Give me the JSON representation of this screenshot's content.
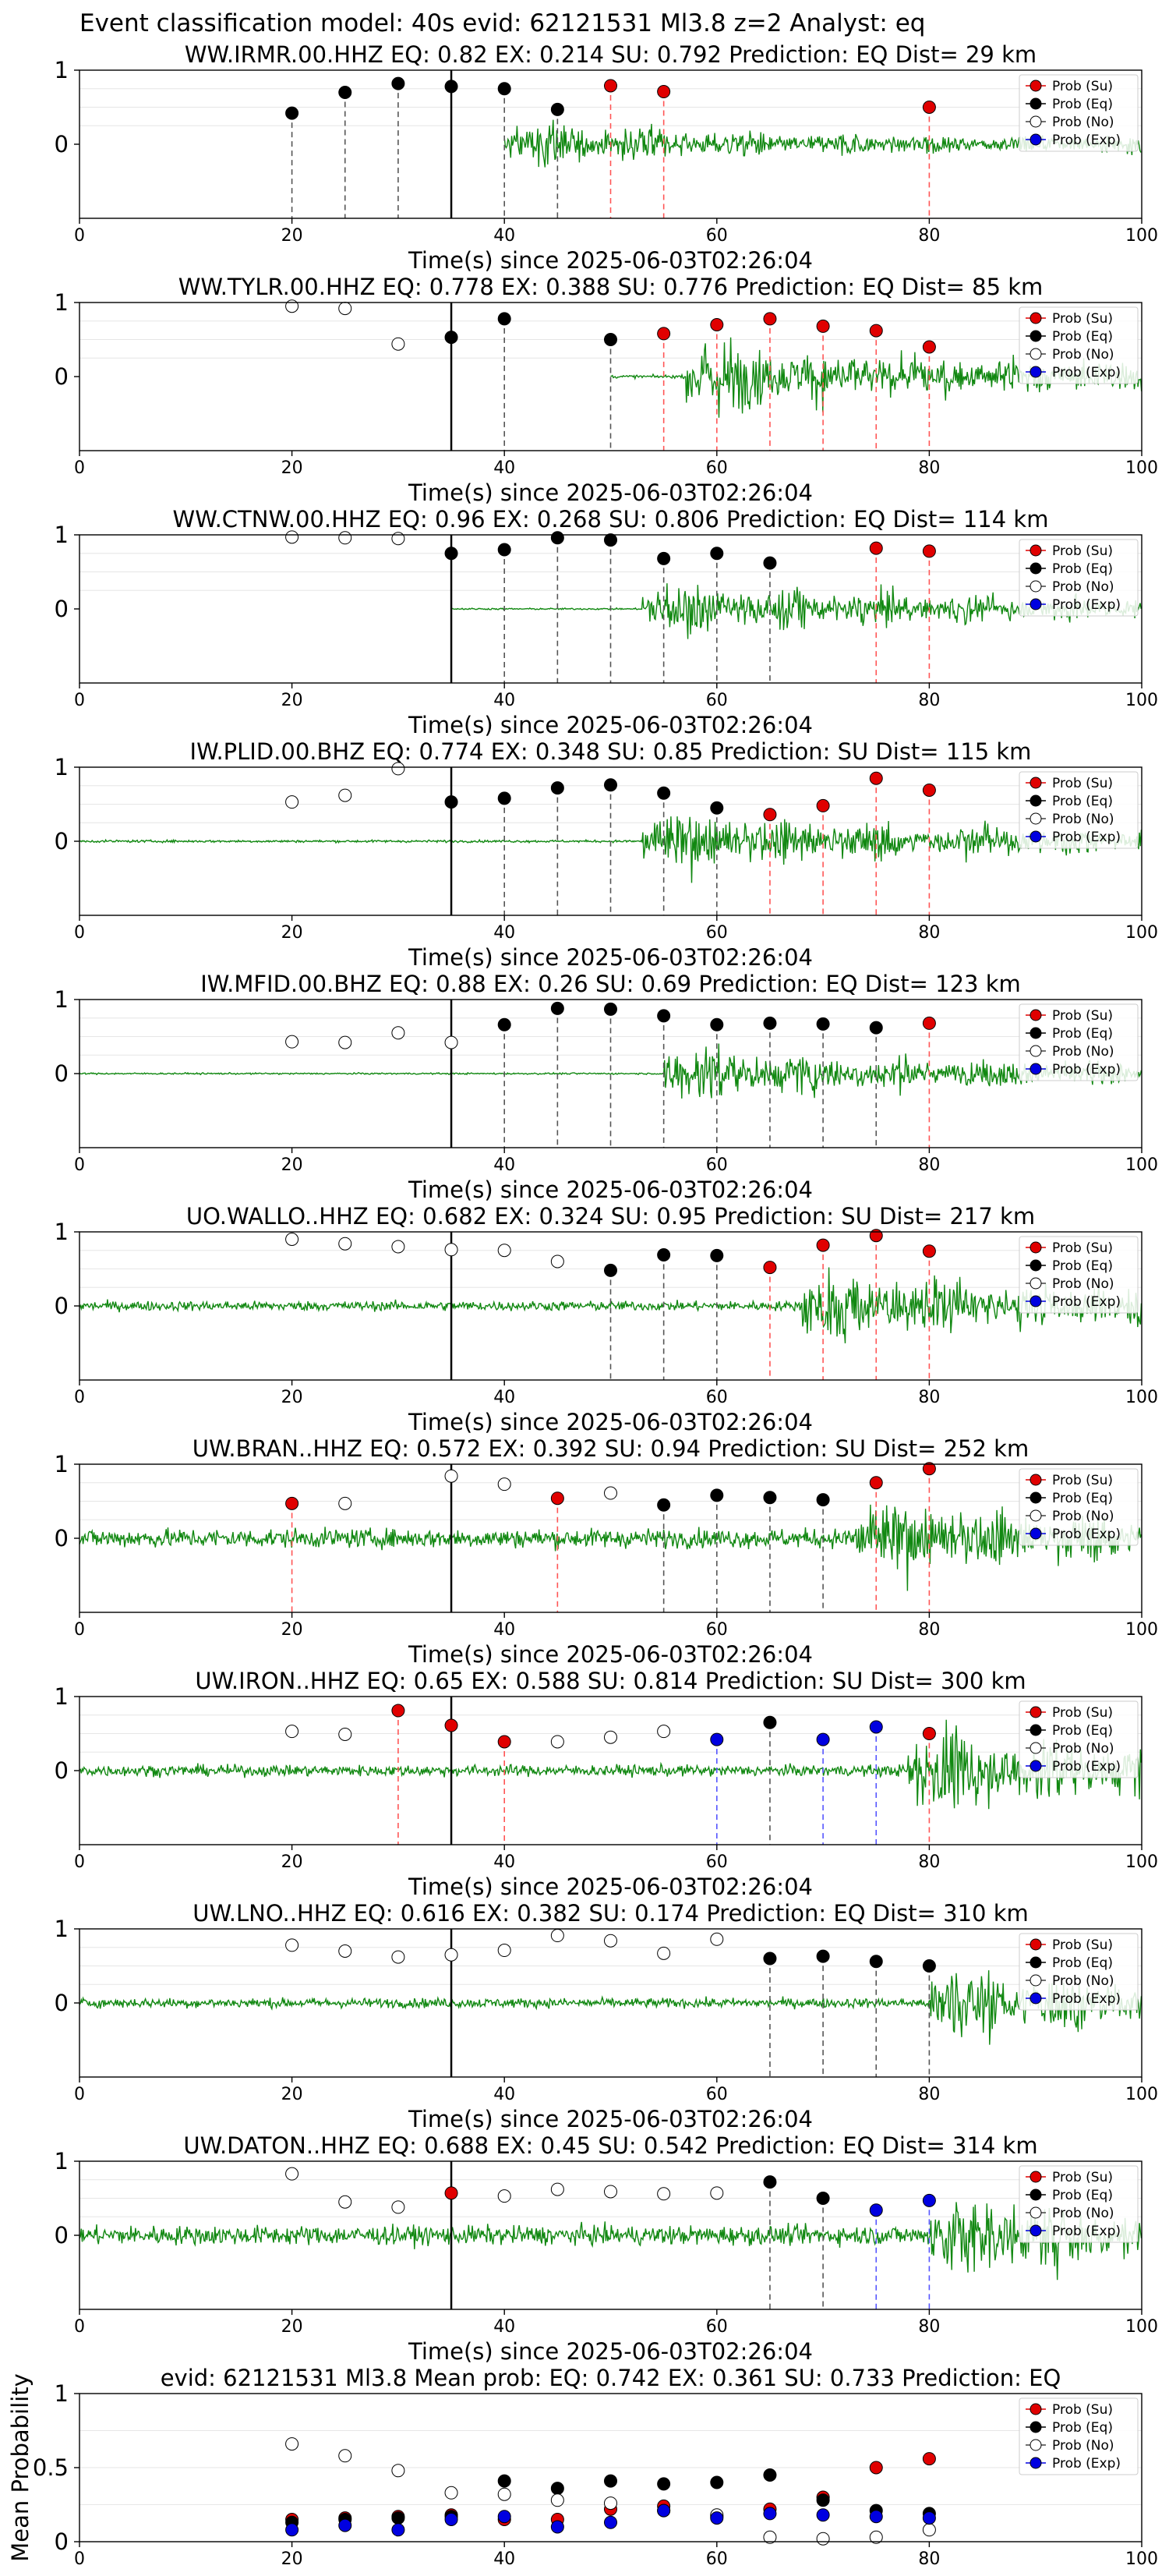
{
  "figure_title": "Event classification model: 40s evid: 62121531 Ml3.8 z=2 Analyst: eq",
  "x_axis_label": "Time(s) since 2025-06-03T02:26:04",
  "legend": [
    "Prob (Su)",
    "Prob (Eq)",
    "Prob (No)",
    "Prob (Exp)"
  ],
  "colors": {
    "su": "#e00000",
    "eq": "#000000",
    "no": "#ffffff",
    "exp": "#0000e0",
    "waveform": "#118811",
    "su_line": "#ff5555",
    "eq_line": "#555555",
    "exp_line": "#5555ff"
  },
  "chart_data": [
    {
      "type": "scatter",
      "title": "WW.IRMR.00.HHZ   EQ: 0.82  EX: 0.214  SU: 0.792   Prediction: EQ    Dist= 29 km",
      "xlim": [
        0,
        100
      ],
      "ylim": [
        -1,
        1
      ],
      "yticks": [
        0,
        1
      ],
      "xticks": [
        0,
        20,
        40,
        60,
        80,
        100
      ],
      "reference_time": 35,
      "waveform_start": 40,
      "signal_start": 40,
      "noise": 0.02,
      "signal_amp": 0.35,
      "points": [
        [
          20,
          0.42,
          "eq"
        ],
        [
          25,
          0.7,
          "eq"
        ],
        [
          30,
          0.82,
          "eq"
        ],
        [
          35,
          0.78,
          "eq"
        ],
        [
          40,
          0.75,
          "eq"
        ],
        [
          45,
          0.47,
          "eq"
        ],
        [
          50,
          0.79,
          "su"
        ],
        [
          55,
          0.71,
          "su"
        ],
        [
          80,
          0.5,
          "su"
        ]
      ]
    },
    {
      "type": "scatter",
      "title": "WW.TYLR.00.HHZ   EQ: 0.778  EX: 0.388  SU: 0.776   Prediction: EQ    Dist= 85 km",
      "xlim": [
        0,
        100
      ],
      "ylim": [
        -1,
        1
      ],
      "yticks": [
        0,
        1
      ],
      "xticks": [
        0,
        20,
        40,
        60,
        80,
        100
      ],
      "reference_time": 35,
      "waveform_start": 50,
      "signal_start": 57,
      "noise": 0.02,
      "signal_amp": 0.6,
      "points": [
        [
          20,
          0.95,
          "no"
        ],
        [
          25,
          0.92,
          "no"
        ],
        [
          30,
          0.44,
          "no"
        ],
        [
          35,
          0.53,
          "eq"
        ],
        [
          40,
          0.78,
          "eq"
        ],
        [
          50,
          0.5,
          "eq"
        ],
        [
          55,
          0.58,
          "su"
        ],
        [
          60,
          0.7,
          "su"
        ],
        [
          65,
          0.78,
          "su"
        ],
        [
          70,
          0.68,
          "su"
        ],
        [
          75,
          0.62,
          "su"
        ],
        [
          80,
          0.4,
          "su"
        ]
      ]
    },
    {
      "type": "scatter",
      "title": "WW.CTNW.00.HHZ   EQ: 0.96  EX: 0.268  SU: 0.806   Prediction: EQ    Dist= 114 km",
      "xlim": [
        0,
        100
      ],
      "ylim": [
        -1,
        1
      ],
      "yticks": [
        0,
        1
      ],
      "xticks": [
        0,
        20,
        40,
        60,
        80,
        100
      ],
      "reference_time": 35,
      "waveform_start": 35,
      "signal_start": 53,
      "noise": 0.01,
      "signal_amp": 0.45,
      "points": [
        [
          20,
          0.97,
          "no"
        ],
        [
          25,
          0.96,
          "no"
        ],
        [
          30,
          0.95,
          "no"
        ],
        [
          35,
          0.75,
          "eq"
        ],
        [
          40,
          0.8,
          "eq"
        ],
        [
          45,
          0.96,
          "eq"
        ],
        [
          50,
          0.93,
          "eq"
        ],
        [
          55,
          0.68,
          "eq"
        ],
        [
          60,
          0.75,
          "eq"
        ],
        [
          65,
          0.62,
          "eq"
        ],
        [
          75,
          0.82,
          "su"
        ],
        [
          80,
          0.78,
          "su"
        ]
      ]
    },
    {
      "type": "scatter",
      "title": "IW.PLID.00.BHZ   EQ: 0.774  EX: 0.348  SU: 0.85   Prediction: SU    Dist= 115 km",
      "xlim": [
        0,
        100
      ],
      "ylim": [
        -1,
        1
      ],
      "yticks": [
        0,
        1
      ],
      "xticks": [
        0,
        20,
        40,
        60,
        80,
        100
      ],
      "reference_time": 35,
      "waveform_start": 0,
      "signal_start": 53,
      "noise": 0.015,
      "signal_amp": 0.5,
      "points": [
        [
          20,
          0.53,
          "no"
        ],
        [
          25,
          0.62,
          "no"
        ],
        [
          30,
          0.98,
          "no"
        ],
        [
          35,
          0.53,
          "eq"
        ],
        [
          40,
          0.58,
          "eq"
        ],
        [
          45,
          0.72,
          "eq"
        ],
        [
          50,
          0.76,
          "eq"
        ],
        [
          55,
          0.65,
          "eq"
        ],
        [
          60,
          0.45,
          "eq"
        ],
        [
          65,
          0.36,
          "su"
        ],
        [
          70,
          0.48,
          "su"
        ],
        [
          75,
          0.85,
          "su"
        ],
        [
          80,
          0.69,
          "su"
        ]
      ]
    },
    {
      "type": "scatter",
      "title": "IW.MFID.00.BHZ   EQ: 0.88  EX: 0.26  SU: 0.69   Prediction: EQ    Dist= 123 km",
      "xlim": [
        0,
        100
      ],
      "ylim": [
        -1,
        1
      ],
      "yticks": [
        0,
        1
      ],
      "xticks": [
        0,
        20,
        40,
        60,
        80,
        100
      ],
      "reference_time": 35,
      "waveform_start": 0,
      "signal_start": 55,
      "noise": 0.01,
      "signal_amp": 0.45,
      "points": [
        [
          20,
          0.43,
          "no"
        ],
        [
          25,
          0.42,
          "no"
        ],
        [
          30,
          0.55,
          "no"
        ],
        [
          35,
          0.42,
          "no"
        ],
        [
          40,
          0.66,
          "eq"
        ],
        [
          45,
          0.88,
          "eq"
        ],
        [
          50,
          0.87,
          "eq"
        ],
        [
          55,
          0.78,
          "eq"
        ],
        [
          60,
          0.66,
          "eq"
        ],
        [
          65,
          0.68,
          "eq"
        ],
        [
          70,
          0.67,
          "eq"
        ],
        [
          75,
          0.62,
          "eq"
        ],
        [
          80,
          0.68,
          "su"
        ]
      ]
    },
    {
      "type": "scatter",
      "title": "UO.WALLO..HHZ   EQ: 0.682  EX: 0.324  SU: 0.95   Prediction: SU    Dist= 217 km",
      "xlim": [
        0,
        100
      ],
      "ylim": [
        -1,
        1
      ],
      "yticks": [
        0,
        1
      ],
      "xticks": [
        0,
        20,
        40,
        60,
        80,
        100
      ],
      "reference_time": 35,
      "waveform_start": 0,
      "signal_start": 68,
      "noise": 0.06,
      "signal_amp": 0.6,
      "points": [
        [
          20,
          0.9,
          "no"
        ],
        [
          25,
          0.84,
          "no"
        ],
        [
          30,
          0.8,
          "no"
        ],
        [
          35,
          0.76,
          "no"
        ],
        [
          40,
          0.75,
          "no"
        ],
        [
          45,
          0.6,
          "no"
        ],
        [
          50,
          0.48,
          "eq"
        ],
        [
          55,
          0.69,
          "eq"
        ],
        [
          60,
          0.68,
          "eq"
        ],
        [
          65,
          0.52,
          "su"
        ],
        [
          70,
          0.82,
          "su"
        ],
        [
          75,
          0.95,
          "su"
        ],
        [
          80,
          0.74,
          "su"
        ]
      ]
    },
    {
      "type": "scatter",
      "title": "UW.BRAN..HHZ   EQ: 0.572  EX: 0.392  SU: 0.94   Prediction: SU    Dist= 252 km",
      "xlim": [
        0,
        100
      ],
      "ylim": [
        -1,
        1
      ],
      "yticks": [
        0,
        1
      ],
      "xticks": [
        0,
        20,
        40,
        60,
        80,
        100
      ],
      "reference_time": 35,
      "waveform_start": 0,
      "signal_start": 73,
      "noise": 0.12,
      "signal_amp": 0.6,
      "points": [
        [
          20,
          0.47,
          "su"
        ],
        [
          25,
          0.47,
          "no"
        ],
        [
          35,
          0.84,
          "no"
        ],
        [
          40,
          0.73,
          "no"
        ],
        [
          45,
          0.54,
          "su"
        ],
        [
          50,
          0.61,
          "no"
        ],
        [
          55,
          0.45,
          "eq"
        ],
        [
          60,
          0.58,
          "eq"
        ],
        [
          65,
          0.55,
          "eq"
        ],
        [
          70,
          0.52,
          "eq"
        ],
        [
          75,
          0.75,
          "su"
        ],
        [
          80,
          0.94,
          "su"
        ]
      ]
    },
    {
      "type": "scatter",
      "title": "UW.IRON..HHZ   EQ: 0.65  EX: 0.588  SU: 0.814   Prediction: SU    Dist= 300 km",
      "xlim": [
        0,
        100
      ],
      "ylim": [
        -1,
        1
      ],
      "yticks": [
        0,
        1
      ],
      "xticks": [
        0,
        20,
        40,
        60,
        80,
        100
      ],
      "reference_time": 35,
      "waveform_start": 0,
      "signal_start": 78,
      "noise": 0.07,
      "signal_amp": 0.7,
      "points": [
        [
          20,
          0.53,
          "no"
        ],
        [
          25,
          0.49,
          "no"
        ],
        [
          30,
          0.81,
          "su"
        ],
        [
          35,
          0.61,
          "su"
        ],
        [
          40,
          0.39,
          "su"
        ],
        [
          45,
          0.39,
          "no"
        ],
        [
          50,
          0.45,
          "no"
        ],
        [
          55,
          0.53,
          "no"
        ],
        [
          60,
          0.42,
          "exp"
        ],
        [
          65,
          0.65,
          "eq"
        ],
        [
          70,
          0.42,
          "exp"
        ],
        [
          75,
          0.59,
          "exp"
        ],
        [
          80,
          0.5,
          "su"
        ]
      ]
    },
    {
      "type": "scatter",
      "title": "UW.LNO..HHZ   EQ: 0.616  EX: 0.382  SU: 0.174   Prediction: EQ    Dist= 310 km",
      "xlim": [
        0,
        100
      ],
      "ylim": [
        -1,
        1
      ],
      "yticks": [
        0,
        1
      ],
      "xticks": [
        0,
        20,
        40,
        60,
        80,
        100
      ],
      "reference_time": 35,
      "waveform_start": 0,
      "signal_start": 80,
      "noise": 0.06,
      "signal_amp": 0.6,
      "points": [
        [
          20,
          0.78,
          "no"
        ],
        [
          25,
          0.7,
          "no"
        ],
        [
          30,
          0.62,
          "no"
        ],
        [
          35,
          0.65,
          "no"
        ],
        [
          40,
          0.71,
          "no"
        ],
        [
          45,
          0.91,
          "no"
        ],
        [
          50,
          0.84,
          "no"
        ],
        [
          55,
          0.67,
          "no"
        ],
        [
          60,
          0.86,
          "no"
        ],
        [
          65,
          0.6,
          "eq"
        ],
        [
          70,
          0.63,
          "eq"
        ],
        [
          75,
          0.56,
          "eq"
        ],
        [
          80,
          0.5,
          "eq"
        ]
      ]
    },
    {
      "type": "scatter",
      "title": "UW.DATON..HHZ   EQ: 0.688  EX: 0.45  SU: 0.542   Prediction: EQ    Dist= 314 km",
      "xlim": [
        0,
        100
      ],
      "ylim": [
        -1,
        1
      ],
      "yticks": [
        0,
        1
      ],
      "xticks": [
        0,
        20,
        40,
        60,
        80,
        100
      ],
      "reference_time": 35,
      "waveform_start": 0,
      "signal_start": 80,
      "noise": 0.12,
      "signal_amp": 0.7,
      "points": [
        [
          20,
          0.83,
          "no"
        ],
        [
          25,
          0.45,
          "no"
        ],
        [
          30,
          0.38,
          "no"
        ],
        [
          35,
          0.57,
          "su"
        ],
        [
          40,
          0.53,
          "no"
        ],
        [
          45,
          0.62,
          "no"
        ],
        [
          50,
          0.59,
          "no"
        ],
        [
          55,
          0.56,
          "no"
        ],
        [
          60,
          0.57,
          "no"
        ],
        [
          65,
          0.72,
          "eq"
        ],
        [
          70,
          0.5,
          "eq"
        ],
        [
          75,
          0.34,
          "exp"
        ],
        [
          80,
          0.47,
          "exp"
        ]
      ]
    },
    {
      "type": "line",
      "title": "evid: 62121531  Ml3.8   Mean prob:   EQ: 0.742  EX: 0.361  SU: 0.733   Prediction: EQ",
      "ylabel": "Mean Probability",
      "xlim": [
        0,
        100
      ],
      "ylim": [
        0,
        1
      ],
      "yticks": [
        0.0,
        0.5,
        1.0
      ],
      "xticks": [
        0,
        20,
        40,
        60,
        80,
        100
      ],
      "x": [
        20,
        25,
        30,
        35,
        40,
        45,
        50,
        55,
        60,
        65,
        70,
        75,
        80
      ],
      "series": [
        {
          "name": "Prob (Su)",
          "key": "su",
          "values": [
            0.15,
            0.16,
            0.17,
            0.18,
            0.15,
            0.15,
            0.22,
            0.24,
            0.17,
            0.22,
            0.3,
            0.5,
            0.56
          ]
        },
        {
          "name": "Prob (Eq)",
          "key": "eq",
          "values": [
            0.13,
            0.15,
            0.16,
            0.17,
            0.41,
            0.36,
            0.41,
            0.39,
            0.4,
            0.45,
            0.28,
            0.21,
            0.19
          ]
        },
        {
          "name": "Prob (No)",
          "key": "no",
          "values": [
            0.66,
            0.58,
            0.48,
            0.33,
            0.32,
            0.28,
            0.26,
            0.21,
            0.18,
            0.03,
            0.02,
            0.03,
            0.08
          ]
        },
        {
          "name": "Prob (Exp)",
          "key": "exp",
          "values": [
            0.08,
            0.11,
            0.08,
            0.15,
            0.17,
            0.1,
            0.13,
            0.21,
            0.16,
            0.19,
            0.18,
            0.17,
            0.16
          ]
        }
      ]
    }
  ]
}
